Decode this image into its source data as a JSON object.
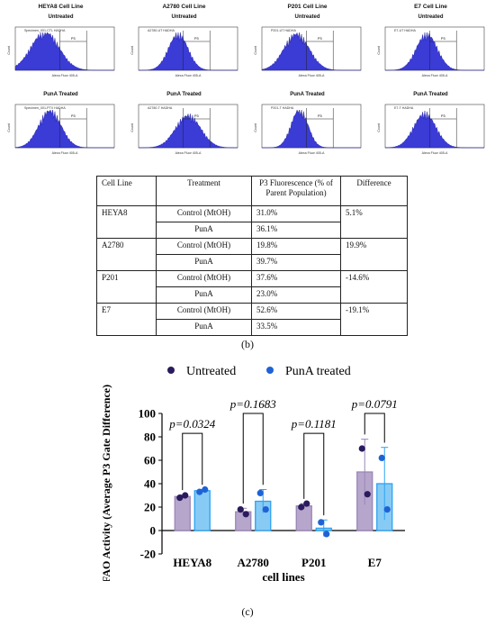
{
  "flow_panels": [
    {
      "cell_line": "HEYA8 Cell Line",
      "untreated_label": "Untreated",
      "treated_label": "PunA Treated",
      "untreated_specimen": "Specimen_001-CTL HADHA",
      "treated_specimen": "Specimen_001-PTX HADHA",
      "gate": "P3",
      "x_axis": "Alexa Fluor 405-A",
      "y_axis": "Count"
    },
    {
      "cell_line": "A2780 Cell Line",
      "untreated_label": "Untreated",
      "treated_label": "PunA Treated",
      "untreated_specimen": "A2780-UT HADHA",
      "treated_specimen": "A2780-T HADHA",
      "gate": "P3",
      "x_axis": "Alexa Fluor 405-A",
      "y_axis": "Count"
    },
    {
      "cell_line": "P201 Cell Line",
      "untreated_label": "Untreated",
      "treated_label": "PunA Treated",
      "untreated_specimen": "P201-UT HADHA",
      "treated_specimen": "P201-T HADHA",
      "gate": "P3",
      "x_axis": "Alexa Fluor 405-A",
      "y_axis": "Count"
    },
    {
      "cell_line": "E7 Cell Line",
      "untreated_label": "Untreated",
      "treated_label": "PunA Treated",
      "untreated_specimen": "E7-UT HADHA",
      "treated_specimen": "E7-T HADHA",
      "gate": "P3",
      "x_axis": "Alexa Fluor 405-A",
      "y_axis": "Count"
    }
  ],
  "table": {
    "headers": [
      "Cell Line",
      "Treatment",
      "P3 Fluorescence (% of Parent Population)",
      "Difference"
    ],
    "groups": [
      {
        "cell_line": "HEYA8",
        "rows": [
          {
            "treatment": "Control (MtOH)",
            "p3": "31.0%"
          },
          {
            "treatment": "PunA",
            "p3": "36.1%"
          }
        ],
        "difference": "5.1%"
      },
      {
        "cell_line": "A2780",
        "rows": [
          {
            "treatment": "Control (MtOH)",
            "p3": "19.8%"
          },
          {
            "treatment": "PunA",
            "p3": "39.7%"
          }
        ],
        "difference": "19.9%"
      },
      {
        "cell_line": "P201",
        "rows": [
          {
            "treatment": "Control (MtOH)",
            "p3": "37.6%"
          },
          {
            "treatment": "PunA",
            "p3": "23.0%"
          }
        ],
        "difference": "-14.6%"
      },
      {
        "cell_line": "E7",
        "rows": [
          {
            "treatment": "Control (MtOH)",
            "p3": "52.6%"
          },
          {
            "treatment": "PunA",
            "p3": "33.5%"
          }
        ],
        "difference": "-19.1%"
      }
    ]
  },
  "captions": {
    "b": "(b)",
    "c": "(c)"
  },
  "colors": {
    "histogram": "#3b3bd6",
    "untreated_bar": "#b7a6cc",
    "untreated_point": "#2a1b5e",
    "treated_bar": "#87cbf5",
    "treated_bar_edge": "#2ea2f0",
    "treated_point": "#1e63d6"
  },
  "chart_data": {
    "type": "bar",
    "ylabel": "FAO Activity (Average P3 Gate Difference)",
    "xlabel": "cell lines",
    "ylim": [
      -20,
      100
    ],
    "yticks": [
      -20,
      0,
      20,
      40,
      60,
      80,
      100
    ],
    "categories": [
      "HEYA8",
      "A2780",
      "P201",
      "E7"
    ],
    "series": [
      {
        "name": "Untreated",
        "values": [
          29,
          16,
          21,
          50
        ],
        "errors": [
          1.5,
          3,
          2,
          28
        ],
        "points": [
          [
            28,
            30
          ],
          [
            18,
            14
          ],
          [
            20,
            23
          ],
          [
            70,
            31
          ]
        ]
      },
      {
        "name": "PunA treated",
        "values": [
          34,
          25,
          2,
          40
        ],
        "errors": [
          1,
          10,
          7,
          31
        ],
        "points": [
          [
            33,
            35
          ],
          [
            32,
            18
          ],
          [
            7,
            -3
          ],
          [
            62,
            18
          ]
        ]
      }
    ],
    "p_values": [
      "p=0.0324",
      "p=0.1683",
      "p=0.1181",
      "p=0.0791"
    ],
    "legend_position": "top"
  }
}
